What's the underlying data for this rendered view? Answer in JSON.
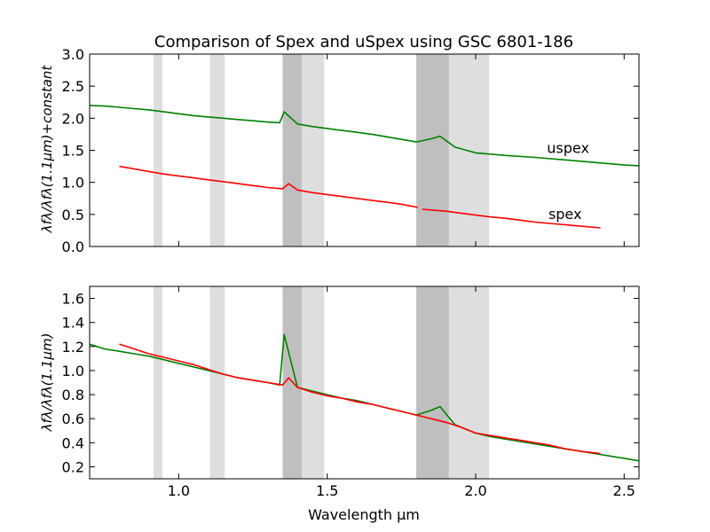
{
  "figure": {
    "title": "Comparison of Spex and uSpex using GSC 6801-186",
    "xlabel": "Wavelength μm"
  },
  "chart_data": [
    {
      "type": "line",
      "title": "Comparison of Spex and uSpex using GSC 6801-186",
      "xlabel": "",
      "ylabel": "λfλ/λfλ(1.1μm)+constant",
      "xlim": [
        0.7,
        2.55
      ],
      "ylim": [
        0.0,
        3.0
      ],
      "yticks": [
        "0.0",
        "0.5",
        "1.0",
        "1.5",
        "2.0",
        "2.5",
        "3.0"
      ],
      "xticks_labeled": false,
      "grid": false,
      "shaded_bands": [
        {
          "x": [
            0.915,
            0.945
          ],
          "shade": "light"
        },
        {
          "x": [
            1.105,
            1.155
          ],
          "shade": "light"
        },
        {
          "x": [
            1.35,
            1.415
          ],
          "shade": "dark"
        },
        {
          "x": [
            1.415,
            1.49
          ],
          "shade": "light"
        },
        {
          "x": [
            1.8,
            1.91
          ],
          "shade": "dark"
        },
        {
          "x": [
            1.91,
            2.045
          ],
          "shade": "light"
        }
      ],
      "annotations": [
        {
          "text": "uspex",
          "x": 2.24,
          "y": 1.46
        },
        {
          "text": "spex",
          "x": 2.245,
          "y": 0.43
        }
      ],
      "series": [
        {
          "name": "uspex",
          "color": "#008000",
          "x": [
            0.7,
            0.75,
            0.8,
            0.85,
            0.9,
            0.95,
            1.0,
            1.05,
            1.1,
            1.15,
            1.2,
            1.25,
            1.3,
            1.34,
            1.355,
            1.4,
            1.45,
            1.5,
            1.55,
            1.6,
            1.65,
            1.7,
            1.75,
            1.8,
            1.85,
            1.88,
            1.93,
            2.0,
            2.05,
            2.1,
            2.2,
            2.3,
            2.4,
            2.5,
            2.55
          ],
          "y": [
            2.2,
            2.19,
            2.17,
            2.15,
            2.13,
            2.1,
            2.07,
            2.04,
            2.02,
            2.0,
            1.98,
            1.96,
            1.94,
            1.93,
            2.1,
            1.91,
            1.87,
            1.84,
            1.81,
            1.78,
            1.75,
            1.71,
            1.67,
            1.63,
            1.68,
            1.72,
            1.55,
            1.46,
            1.44,
            1.42,
            1.39,
            1.35,
            1.31,
            1.27,
            1.26
          ]
        },
        {
          "name": "spex",
          "color": "#ff0000",
          "x": [
            0.8,
            0.85,
            0.9,
            0.95,
            1.0,
            1.05,
            1.1,
            1.15,
            1.2,
            1.25,
            1.3,
            1.35,
            1.37,
            1.4,
            1.45,
            1.5,
            1.55,
            1.6,
            1.65,
            1.7,
            1.75,
            1.805,
            null,
            1.82,
            1.9,
            2.0,
            2.05,
            2.1,
            2.15,
            2.2,
            2.25,
            2.3,
            2.35,
            2.42
          ],
          "y": [
            1.25,
            1.21,
            1.17,
            1.13,
            1.1,
            1.07,
            1.04,
            1.01,
            0.98,
            0.95,
            0.92,
            0.9,
            0.98,
            0.88,
            0.84,
            0.81,
            0.78,
            0.75,
            0.72,
            0.69,
            0.66,
            0.61,
            null,
            0.58,
            0.55,
            0.49,
            0.46,
            0.44,
            0.41,
            0.38,
            0.36,
            0.34,
            0.32,
            0.29
          ]
        }
      ]
    },
    {
      "type": "line",
      "title": "",
      "xlabel": "Wavelength μm",
      "ylabel": "λfλ/λfλ(1.1μm)",
      "xlim": [
        0.7,
        2.55
      ],
      "ylim": [
        0.1,
        1.7
      ],
      "xticks": [
        "1.0",
        "1.5",
        "2.0",
        "2.5"
      ],
      "yticks": [
        "0.2",
        "0.4",
        "0.6",
        "0.8",
        "1.0",
        "1.2",
        "1.4",
        "1.6"
      ],
      "grid": false,
      "shaded_bands": [
        {
          "x": [
            0.915,
            0.945
          ],
          "shade": "light"
        },
        {
          "x": [
            1.105,
            1.155
          ],
          "shade": "light"
        },
        {
          "x": [
            1.35,
            1.415
          ],
          "shade": "dark"
        },
        {
          "x": [
            1.415,
            1.49
          ],
          "shade": "light"
        },
        {
          "x": [
            1.8,
            1.91
          ],
          "shade": "dark"
        },
        {
          "x": [
            1.91,
            2.045
          ],
          "shade": "light"
        }
      ],
      "series": [
        {
          "name": "uspex",
          "color": "#008000",
          "x": [
            0.7,
            0.75,
            0.8,
            0.85,
            0.9,
            0.95,
            1.0,
            1.05,
            1.1,
            1.15,
            1.2,
            1.25,
            1.3,
            1.34,
            1.355,
            1.4,
            1.45,
            1.5,
            1.55,
            1.6,
            1.65,
            1.7,
            1.75,
            1.8,
            1.85,
            1.88,
            1.93,
            2.0,
            2.05,
            2.1,
            2.2,
            2.3,
            2.4,
            2.5,
            2.55
          ],
          "y": [
            1.22,
            1.18,
            1.16,
            1.14,
            1.12,
            1.09,
            1.06,
            1.03,
            1.0,
            0.97,
            0.94,
            0.92,
            0.9,
            0.88,
            1.3,
            0.86,
            0.83,
            0.8,
            0.77,
            0.75,
            0.72,
            0.69,
            0.66,
            0.63,
            0.67,
            0.7,
            0.55,
            0.48,
            0.45,
            0.43,
            0.39,
            0.35,
            0.31,
            0.27,
            0.25
          ]
        },
        {
          "name": "spex",
          "color": "#ff0000",
          "x": [
            0.8,
            0.85,
            0.9,
            0.95,
            1.0,
            1.05,
            1.1,
            1.15,
            1.2,
            1.25,
            1.3,
            1.35,
            1.37,
            1.4,
            1.45,
            1.5,
            1.55,
            1.6,
            1.65,
            1.7,
            1.75,
            1.8,
            1.85,
            1.9,
            1.95,
            2.0,
            2.05,
            2.1,
            2.15,
            2.2,
            2.25,
            2.3,
            2.35,
            2.42
          ],
          "y": [
            1.22,
            1.18,
            1.14,
            1.11,
            1.08,
            1.05,
            1.01,
            0.97,
            0.94,
            0.92,
            0.9,
            0.88,
            0.94,
            0.86,
            0.82,
            0.79,
            0.77,
            0.74,
            0.72,
            0.69,
            0.66,
            0.63,
            0.6,
            0.57,
            0.53,
            0.48,
            0.46,
            0.44,
            0.42,
            0.4,
            0.38,
            0.35,
            0.33,
            0.31
          ]
        }
      ]
    }
  ]
}
